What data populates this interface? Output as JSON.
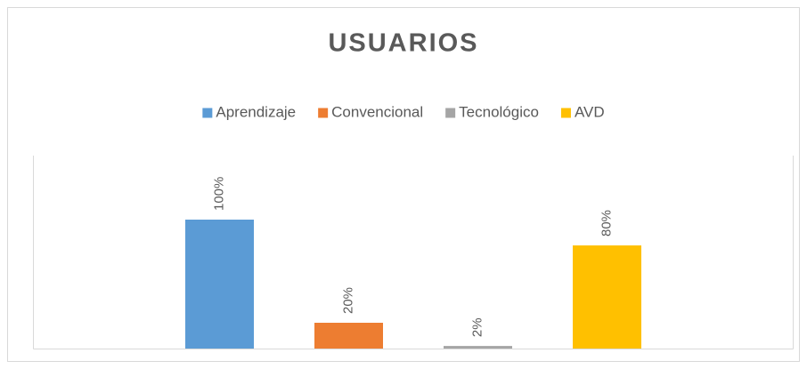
{
  "chart_data": {
    "type": "bar",
    "title": "USUARIOS",
    "categories": [
      null
    ],
    "series": [
      {
        "name": "Aprendizaje",
        "color": "#5b9bd5",
        "values": [
          100
        ],
        "value_labels": [
          "100%"
        ]
      },
      {
        "name": "Convencional",
        "color": "#ed7d31",
        "values": [
          20
        ],
        "value_labels": [
          "20%"
        ]
      },
      {
        "name": "Tecnológico",
        "color": "#a5a5a5",
        "values": [
          2
        ],
        "value_labels": [
          "2%"
        ]
      },
      {
        "name": "AVD",
        "color": "#ffc000",
        "values": [
          80
        ],
        "value_labels": [
          "80%"
        ]
      }
    ],
    "ylim": [
      0,
      150
    ],
    "legend": "top"
  }
}
